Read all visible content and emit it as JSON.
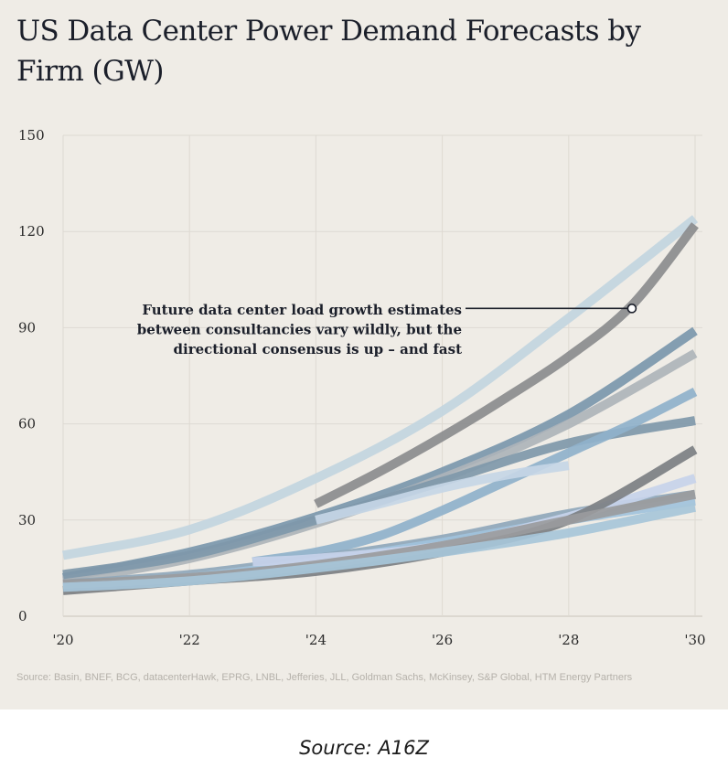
{
  "source_caption": "Source: A16Z",
  "chart_data": {
    "type": "line",
    "title": "US Data Center Power Demand Forecasts by Firm (GW)",
    "xlabel": "",
    "ylabel": "",
    "xlim": [
      2020,
      2030
    ],
    "ylim": [
      0,
      150
    ],
    "y_ticks": [
      0,
      30,
      60,
      90,
      120,
      150
    ],
    "x_ticks": [
      2020,
      2022,
      2024,
      2026,
      2028,
      2030
    ],
    "x_tick_labels": [
      "'20",
      "'22",
      "'24",
      "'26",
      "'28",
      "'30"
    ],
    "grid": "horizontal",
    "annotation": {
      "lines": [
        "Future data center load growth estimates",
        "between consultancies vary wildly, but the",
        "directional consensus is up – and fast"
      ],
      "point": [
        2029,
        96
      ]
    },
    "source": "Source: Basin, BNEF, BCG, datacenterHawk, EPRG, LNBL, Jefferies, JLL, Goldman Sachs, McKinsey, S&P Global, HTM Energy Partners",
    "series": [
      {
        "color": "#c2d5e0",
        "x": [
          2020,
          2022,
          2024,
          2026,
          2028,
          2030
        ],
        "y": [
          19,
          27,
          43,
          64,
          93,
          124
        ]
      },
      {
        "color": "#8b8c8e",
        "x": [
          2024,
          2025,
          2026,
          2027,
          2028,
          2029,
          2030
        ],
        "y": [
          35,
          45,
          56,
          68,
          81,
          97,
          122
        ]
      },
      {
        "color": "#7b97ad",
        "x": [
          2020,
          2022,
          2024,
          2026,
          2028,
          2030
        ],
        "y": [
          12,
          20,
          31,
          45,
          63,
          89
        ]
      },
      {
        "color": "#aeb4ba",
        "x": [
          2020,
          2022,
          2024,
          2026,
          2028,
          2030
        ],
        "y": [
          11,
          18,
          29,
          43,
          60,
          82
        ]
      },
      {
        "color": "#7f98aa",
        "x": [
          2020,
          2022,
          2024,
          2026,
          2028,
          2030
        ],
        "y": [
          13,
          19,
          30,
          42,
          54,
          61
        ]
      },
      {
        "color": "#8fb1cb",
        "x": [
          2023,
          2024,
          2025,
          2026,
          2027,
          2028,
          2029,
          2030
        ],
        "y": [
          17,
          20,
          25,
          33,
          42,
          51,
          60,
          70
        ]
      },
      {
        "color": "#c5d6e6",
        "x": [
          2024,
          2025,
          2026,
          2027,
          2028
        ],
        "y": [
          30,
          35,
          40,
          44,
          47
        ]
      },
      {
        "color": "#8fa7bb",
        "x": [
          2020,
          2022,
          2024,
          2026,
          2028,
          2030
        ],
        "y": [
          10,
          13,
          18,
          24,
          32,
          38
        ]
      },
      {
        "color": "#a1c2dc",
        "x": [
          2020,
          2022,
          2024,
          2026,
          2028,
          2030
        ],
        "y": [
          9,
          12,
          17,
          23,
          30,
          36
        ]
      },
      {
        "color": "#c7d3ea",
        "x": [
          2023,
          2024,
          2026,
          2028,
          2030
        ],
        "y": [
          17,
          18,
          22,
          31,
          43
        ]
      },
      {
        "color": "#7c7f83",
        "x": [
          2020,
          2022,
          2024,
          2026,
          2028,
          2030
        ],
        "y": [
          8,
          11,
          14,
          20,
          30,
          52
        ]
      },
      {
        "color": "#9a9b9d",
        "x": [
          2020,
          2022,
          2024,
          2026,
          2028,
          2030
        ],
        "y": [
          10,
          12,
          16,
          22,
          30,
          38
        ]
      },
      {
        "color": "#a7c6d9",
        "x": [
          2020,
          2022,
          2024,
          2026,
          2028,
          2030
        ],
        "y": [
          9,
          11,
          15,
          20,
          26,
          34
        ]
      }
    ]
  }
}
